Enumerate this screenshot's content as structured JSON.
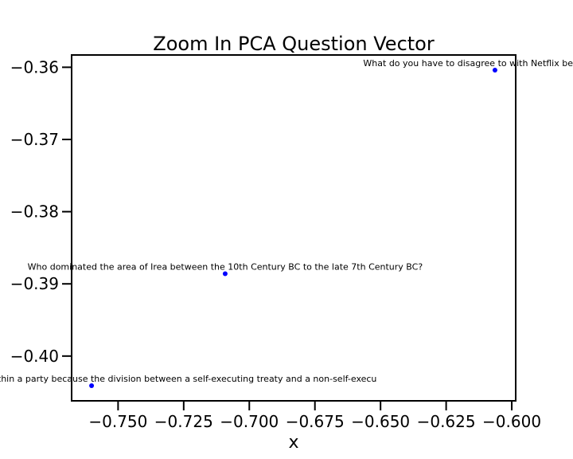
{
  "chart_data": {
    "type": "scatter",
    "title": "Zoom In PCA Question Vector",
    "xlabel": "x",
    "ylabel": "",
    "xlim": [
      -0.7677,
      -0.5985
    ],
    "ylim": [
      -0.4062,
      -0.3583
    ],
    "xticks": [
      -0.75,
      -0.725,
      -0.7,
      -0.675,
      -0.65,
      -0.625,
      -0.6
    ],
    "xtick_labels": [
      "−0.750",
      "−0.725",
      "−0.700",
      "−0.675",
      "−0.650",
      "−0.625",
      "−0.600"
    ],
    "yticks": [
      -0.36,
      -0.37,
      -0.38,
      -0.39,
      -0.4
    ],
    "ytick_labels": [
      "−0.36",
      "−0.37",
      "−0.38",
      "−0.39",
      "−0.40"
    ],
    "grid": false,
    "point_color": "#0000ff",
    "points": [
      {
        "x": -0.6064,
        "y": -0.3604,
        "label": "What do you have to disagree to with Netflix be"
      },
      {
        "x": -0.7092,
        "y": -0.3886,
        "label": "Who dominated the area of Irea between the 10th Century BC to the late 7th Century BC?"
      },
      {
        "x": -0.7601,
        "y": -0.4041,
        "label": "may be politicized due to disagreements within a party because the division between a self-executing treaty and a non-self-execu"
      }
    ]
  }
}
